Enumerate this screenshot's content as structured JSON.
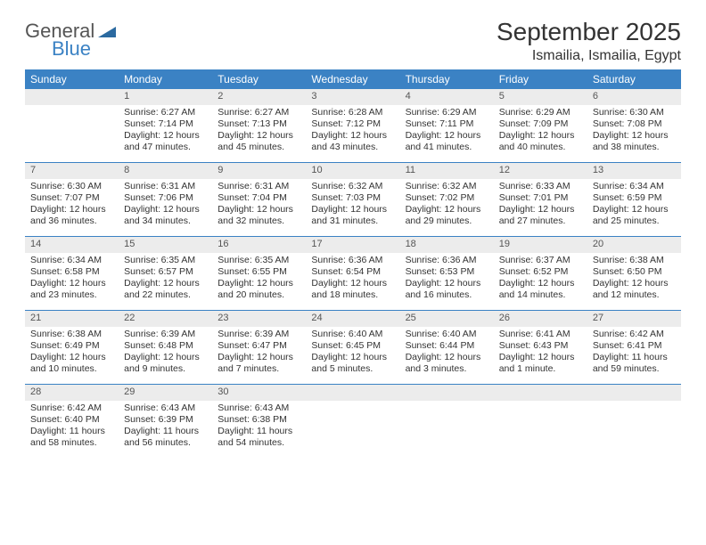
{
  "brand": {
    "word1": "General",
    "word2": "Blue",
    "tri_color": "#2b6aa0"
  },
  "title": "September 2025",
  "location": "Ismailia, Ismailia, Egypt",
  "colors": {
    "header_bg": "#3b82c4",
    "header_text": "#ffffff",
    "daynum_bg": "#ececec",
    "daynum_text": "#555555",
    "week_border": "#3b82c4",
    "body_text": "#333333",
    "page_bg": "#ffffff"
  },
  "day_names": [
    "Sunday",
    "Monday",
    "Tuesday",
    "Wednesday",
    "Thursday",
    "Friday",
    "Saturday"
  ],
  "weeks": [
    [
      {
        "n": "",
        "empty": true
      },
      {
        "n": "1",
        "sunrise": "Sunrise: 6:27 AM",
        "sunset": "Sunset: 7:14 PM",
        "daylight": "Daylight: 12 hours and 47 minutes."
      },
      {
        "n": "2",
        "sunrise": "Sunrise: 6:27 AM",
        "sunset": "Sunset: 7:13 PM",
        "daylight": "Daylight: 12 hours and 45 minutes."
      },
      {
        "n": "3",
        "sunrise": "Sunrise: 6:28 AM",
        "sunset": "Sunset: 7:12 PM",
        "daylight": "Daylight: 12 hours and 43 minutes."
      },
      {
        "n": "4",
        "sunrise": "Sunrise: 6:29 AM",
        "sunset": "Sunset: 7:11 PM",
        "daylight": "Daylight: 12 hours and 41 minutes."
      },
      {
        "n": "5",
        "sunrise": "Sunrise: 6:29 AM",
        "sunset": "Sunset: 7:09 PM",
        "daylight": "Daylight: 12 hours and 40 minutes."
      },
      {
        "n": "6",
        "sunrise": "Sunrise: 6:30 AM",
        "sunset": "Sunset: 7:08 PM",
        "daylight": "Daylight: 12 hours and 38 minutes."
      }
    ],
    [
      {
        "n": "7",
        "sunrise": "Sunrise: 6:30 AM",
        "sunset": "Sunset: 7:07 PM",
        "daylight": "Daylight: 12 hours and 36 minutes."
      },
      {
        "n": "8",
        "sunrise": "Sunrise: 6:31 AM",
        "sunset": "Sunset: 7:06 PM",
        "daylight": "Daylight: 12 hours and 34 minutes."
      },
      {
        "n": "9",
        "sunrise": "Sunrise: 6:31 AM",
        "sunset": "Sunset: 7:04 PM",
        "daylight": "Daylight: 12 hours and 32 minutes."
      },
      {
        "n": "10",
        "sunrise": "Sunrise: 6:32 AM",
        "sunset": "Sunset: 7:03 PM",
        "daylight": "Daylight: 12 hours and 31 minutes."
      },
      {
        "n": "11",
        "sunrise": "Sunrise: 6:32 AM",
        "sunset": "Sunset: 7:02 PM",
        "daylight": "Daylight: 12 hours and 29 minutes."
      },
      {
        "n": "12",
        "sunrise": "Sunrise: 6:33 AM",
        "sunset": "Sunset: 7:01 PM",
        "daylight": "Daylight: 12 hours and 27 minutes."
      },
      {
        "n": "13",
        "sunrise": "Sunrise: 6:34 AM",
        "sunset": "Sunset: 6:59 PM",
        "daylight": "Daylight: 12 hours and 25 minutes."
      }
    ],
    [
      {
        "n": "14",
        "sunrise": "Sunrise: 6:34 AM",
        "sunset": "Sunset: 6:58 PM",
        "daylight": "Daylight: 12 hours and 23 minutes."
      },
      {
        "n": "15",
        "sunrise": "Sunrise: 6:35 AM",
        "sunset": "Sunset: 6:57 PM",
        "daylight": "Daylight: 12 hours and 22 minutes."
      },
      {
        "n": "16",
        "sunrise": "Sunrise: 6:35 AM",
        "sunset": "Sunset: 6:55 PM",
        "daylight": "Daylight: 12 hours and 20 minutes."
      },
      {
        "n": "17",
        "sunrise": "Sunrise: 6:36 AM",
        "sunset": "Sunset: 6:54 PM",
        "daylight": "Daylight: 12 hours and 18 minutes."
      },
      {
        "n": "18",
        "sunrise": "Sunrise: 6:36 AM",
        "sunset": "Sunset: 6:53 PM",
        "daylight": "Daylight: 12 hours and 16 minutes."
      },
      {
        "n": "19",
        "sunrise": "Sunrise: 6:37 AM",
        "sunset": "Sunset: 6:52 PM",
        "daylight": "Daylight: 12 hours and 14 minutes."
      },
      {
        "n": "20",
        "sunrise": "Sunrise: 6:38 AM",
        "sunset": "Sunset: 6:50 PM",
        "daylight": "Daylight: 12 hours and 12 minutes."
      }
    ],
    [
      {
        "n": "21",
        "sunrise": "Sunrise: 6:38 AM",
        "sunset": "Sunset: 6:49 PM",
        "daylight": "Daylight: 12 hours and 10 minutes."
      },
      {
        "n": "22",
        "sunrise": "Sunrise: 6:39 AM",
        "sunset": "Sunset: 6:48 PM",
        "daylight": "Daylight: 12 hours and 9 minutes."
      },
      {
        "n": "23",
        "sunrise": "Sunrise: 6:39 AM",
        "sunset": "Sunset: 6:47 PM",
        "daylight": "Daylight: 12 hours and 7 minutes."
      },
      {
        "n": "24",
        "sunrise": "Sunrise: 6:40 AM",
        "sunset": "Sunset: 6:45 PM",
        "daylight": "Daylight: 12 hours and 5 minutes."
      },
      {
        "n": "25",
        "sunrise": "Sunrise: 6:40 AM",
        "sunset": "Sunset: 6:44 PM",
        "daylight": "Daylight: 12 hours and 3 minutes."
      },
      {
        "n": "26",
        "sunrise": "Sunrise: 6:41 AM",
        "sunset": "Sunset: 6:43 PM",
        "daylight": "Daylight: 12 hours and 1 minute."
      },
      {
        "n": "27",
        "sunrise": "Sunrise: 6:42 AM",
        "sunset": "Sunset: 6:41 PM",
        "daylight": "Daylight: 11 hours and 59 minutes."
      }
    ],
    [
      {
        "n": "28",
        "sunrise": "Sunrise: 6:42 AM",
        "sunset": "Sunset: 6:40 PM",
        "daylight": "Daylight: 11 hours and 58 minutes."
      },
      {
        "n": "29",
        "sunrise": "Sunrise: 6:43 AM",
        "sunset": "Sunset: 6:39 PM",
        "daylight": "Daylight: 11 hours and 56 minutes."
      },
      {
        "n": "30",
        "sunrise": "Sunrise: 6:43 AM",
        "sunset": "Sunset: 6:38 PM",
        "daylight": "Daylight: 11 hours and 54 minutes."
      },
      {
        "n": "",
        "empty": true
      },
      {
        "n": "",
        "empty": true
      },
      {
        "n": "",
        "empty": true
      },
      {
        "n": "",
        "empty": true
      }
    ]
  ]
}
